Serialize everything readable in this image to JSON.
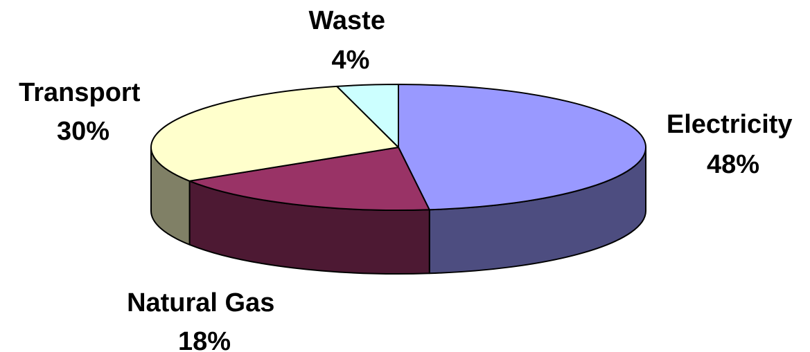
{
  "chart_data": {
    "type": "pie",
    "style": "3d-tilted",
    "legend": "none",
    "slices": [
      {
        "label": "Electricity",
        "value": 48,
        "value_label": "48%",
        "color": "#9999ff",
        "side_color": "#4d4d80"
      },
      {
        "label": "Natural Gas",
        "value": 18,
        "value_label": "18%",
        "color": "#993366",
        "side_color": "#4d1933"
      },
      {
        "label": "Transport",
        "value": 30,
        "value_label": "30%",
        "color": "#ffffcc",
        "side_color": "#808066"
      },
      {
        "label": "Waste",
        "value": 4,
        "value_label": "4%",
        "color": "#ccffff",
        "side_color": "#668080"
      }
    ]
  }
}
